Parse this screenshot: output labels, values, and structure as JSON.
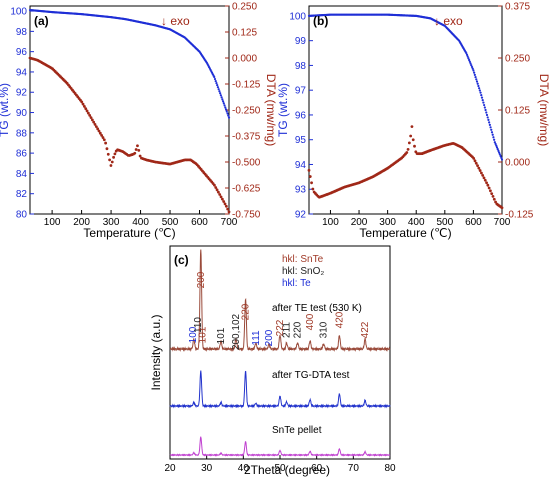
{
  "colors": {
    "tg": "#1f2fd6",
    "dta": "#a02818",
    "snte": "#a03a28",
    "sno2": "#222222",
    "te": "#1f2fd6",
    "xrd_top": "#9a4a3a",
    "xrd_mid": "#2233cc",
    "xrd_bot": "#c040d0"
  },
  "chart_data": [
    {
      "type": "line",
      "panel_label": "(a)",
      "annotation": "↓ exo",
      "xlabel": "Temperature (℃)",
      "ylabel_left": "TG (wt.%)",
      "ylabel_right": "DTA (mw/mg)",
      "xlim": [
        25,
        700
      ],
      "ylim_left": [
        80,
        100.5
      ],
      "ylim_right": [
        -0.75,
        0.25
      ],
      "x_ticks": [
        "100",
        "200",
        "300",
        "400",
        "500",
        "600",
        "700"
      ],
      "y_ticks_left": [
        "80",
        "82",
        "84",
        "86",
        "88",
        "90",
        "92",
        "94",
        "96",
        "98",
        "100"
      ],
      "y_ticks_right": [
        "-0.750",
        "-0.625",
        "-0.500",
        "-0.375",
        "-0.250",
        "-0.125",
        "0.000",
        "0.125",
        "0.250"
      ],
      "series": [
        {
          "axis": "left",
          "x": [
            25,
            100,
            200,
            300,
            350,
            400,
            450,
            500,
            550,
            600,
            625,
            650,
            675,
            700
          ],
          "y": [
            100.1,
            99.9,
            99.7,
            99.4,
            99.2,
            98.9,
            98.6,
            98.2,
            97.4,
            96.0,
            94.9,
            93.5,
            91.5,
            89.5
          ]
        },
        {
          "axis": "right",
          "x": [
            25,
            50,
            100,
            150,
            200,
            250,
            280,
            300,
            310,
            320,
            340,
            360,
            380,
            390,
            400,
            420,
            450,
            500,
            550,
            570,
            590,
            620,
            650,
            670,
            690,
            700
          ],
          "y": [
            0.0,
            -0.01,
            -0.05,
            -0.12,
            -0.21,
            -0.33,
            -0.4,
            -0.52,
            -0.47,
            -0.44,
            -0.45,
            -0.47,
            -0.46,
            -0.42,
            -0.48,
            -0.49,
            -0.5,
            -0.51,
            -0.49,
            -0.49,
            -0.51,
            -0.56,
            -0.61,
            -0.66,
            -0.71,
            -0.74
          ]
        }
      ]
    },
    {
      "type": "line",
      "panel_label": "(b)",
      "annotation": "↓ exo",
      "xlabel": "Temperature (℃)",
      "ylabel_left": "TG (wt.%)",
      "ylabel_right": "DTA (mw/mg)",
      "xlim": [
        25,
        700
      ],
      "ylim_left": [
        92,
        100.4
      ],
      "ylim_right": [
        -0.125,
        0.375
      ],
      "x_ticks": [
        "100",
        "200",
        "300",
        "400",
        "500",
        "600",
        "700"
      ],
      "y_ticks_left": [
        "92",
        "93",
        "94",
        "95",
        "96",
        "97",
        "98",
        "99",
        "100"
      ],
      "y_ticks_right": [
        "-0.125",
        "0.000",
        "0.125",
        "0.250",
        "0.375"
      ],
      "series": [
        {
          "axis": "left",
          "x": [
            25,
            100,
            200,
            300,
            400,
            450,
            500,
            550,
            575,
            600,
            625,
            650,
            675,
            700
          ],
          "y": [
            100.0,
            100.05,
            100.05,
            100.05,
            100.0,
            99.9,
            99.6,
            99.0,
            98.5,
            97.8,
            96.9,
            95.9,
            94.9,
            94.2
          ]
        },
        {
          "axis": "right",
          "x": [
            25,
            40,
            60,
            100,
            150,
            200,
            250,
            300,
            350,
            370,
            380,
            385,
            390,
            400,
            420,
            450,
            500,
            530,
            560,
            600,
            650,
            680,
            700
          ],
          "y": [
            -0.02,
            -0.07,
            -0.085,
            -0.075,
            -0.06,
            -0.05,
            -0.035,
            -0.015,
            0.01,
            0.025,
            0.06,
            0.085,
            0.05,
            0.02,
            0.02,
            0.028,
            0.04,
            0.045,
            0.035,
            0.01,
            -0.055,
            -0.1,
            -0.11
          ]
        }
      ]
    },
    {
      "type": "line",
      "panel_label": "(c)",
      "xlabel": "2Theta (degree)",
      "ylabel": "Intensity (a.u.)",
      "xlim": [
        20,
        80
      ],
      "x_ticks": [
        "20",
        "30",
        "40",
        "50",
        "60",
        "70",
        "80"
      ],
      "legend": [
        "hkl: SnTe",
        "hkl: SnO₂",
        "hkl: Te"
      ],
      "peak_labels": [
        {
          "text": "100",
          "x": 26.3,
          "set": "Te"
        },
        {
          "text": "110",
          "x": 27.6,
          "set": "SnO2"
        },
        {
          "text": "101",
          "x": 28.9,
          "set": "SnTe"
        },
        {
          "text": "200",
          "x": 28.4,
          "set": "SnTe"
        },
        {
          "text": "101",
          "x": 33.9,
          "set": "SnO2"
        },
        {
          "text": "200,102",
          "x": 38.0,
          "set": "SnO2"
        },
        {
          "text": "220",
          "x": 40.6,
          "set": "SnTe"
        },
        {
          "text": "111",
          "x": 43.4,
          "set": "Te"
        },
        {
          "text": "200",
          "x": 47.0,
          "set": "Te"
        },
        {
          "text": "222",
          "x": 50.0,
          "set": "SnTe"
        },
        {
          "text": "211",
          "x": 51.8,
          "set": "SnO2"
        },
        {
          "text": "220",
          "x": 54.8,
          "set": "SnO2"
        },
        {
          "text": "400",
          "x": 58.2,
          "set": "SnTe"
        },
        {
          "text": "310",
          "x": 61.9,
          "set": "SnO2"
        },
        {
          "text": "420",
          "x": 66.2,
          "set": "SnTe"
        },
        {
          "text": "422",
          "x": 73.2,
          "set": "SnTe"
        }
      ],
      "series": [
        {
          "name": "after TE test (530 K)",
          "peaks_x": [
            26.5,
            28.4,
            33.9,
            38.0,
            40.6,
            43.4,
            47.0,
            50.0,
            51.8,
            54.8,
            58.2,
            61.9,
            66.2,
            73.2
          ],
          "peaks_y": [
            0.1,
            1.0,
            0.08,
            0.1,
            0.5,
            0.06,
            0.05,
            0.14,
            0.06,
            0.06,
            0.08,
            0.05,
            0.14,
            0.1
          ]
        },
        {
          "name": "after TG-DTA test",
          "peaks_x": [
            26.5,
            28.4,
            33.9,
            40.6,
            43.4,
            50.0,
            51.8,
            58.2,
            66.2,
            73.2
          ],
          "peaks_y": [
            0.05,
            0.5,
            0.05,
            0.5,
            0.04,
            0.14,
            0.06,
            0.09,
            0.18,
            0.08
          ]
        },
        {
          "name": "SnTe pellet",
          "peaks_x": [
            26.5,
            28.4,
            33.9,
            40.6,
            50.0,
            58.2,
            66.2,
            73.2
          ],
          "peaks_y": [
            0.05,
            0.4,
            0.04,
            0.3,
            0.1,
            0.08,
            0.14,
            0.07
          ]
        }
      ]
    }
  ]
}
